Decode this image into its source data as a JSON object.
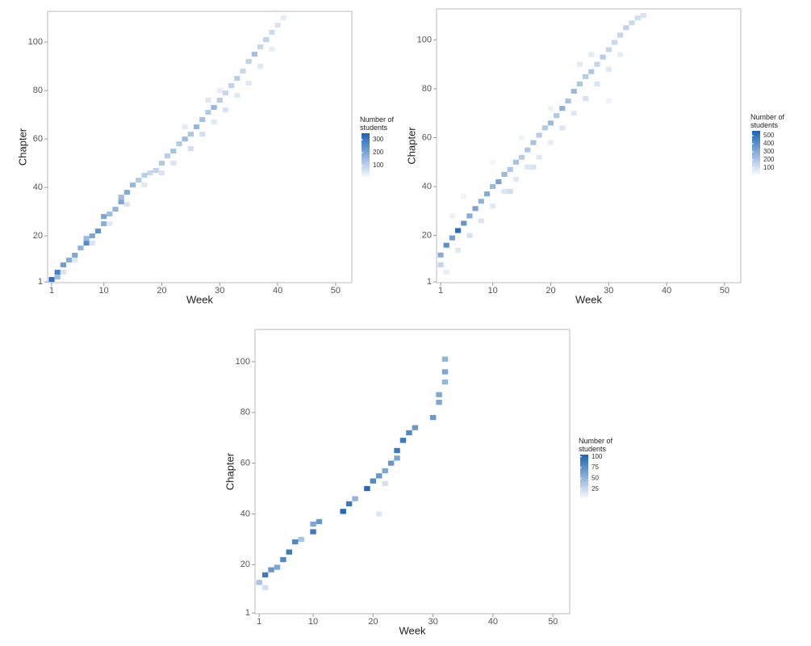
{
  "chart_data": [
    {
      "type": "heatmap",
      "x_label": "Week",
      "y_label": "Chapter",
      "legend_title": "Number of students",
      "color": "#1a63b5",
      "xlim": [
        0.3,
        52.8
      ],
      "xticks": [
        1,
        10,
        20,
        30,
        40,
        50
      ],
      "ylim": [
        0.7,
        112.7
      ],
      "yticks": [
        1,
        20,
        40,
        60,
        80,
        100
      ],
      "colorbar_lim": [
        0,
        350
      ],
      "colorbar_ticks": [
        100,
        200,
        300
      ],
      "x": [
        1,
        2,
        2,
        3,
        4,
        5,
        6,
        7,
        7,
        8,
        9,
        10,
        10,
        11,
        12,
        13,
        13,
        14,
        15,
        16,
        17,
        18,
        19,
        20,
        21,
        22,
        23,
        24,
        25,
        26,
        27,
        28,
        29,
        30,
        31,
        32,
        33,
        34,
        35,
        36,
        37,
        38,
        39,
        40,
        41,
        3,
        5,
        8,
        11,
        14,
        17,
        20,
        22,
        25,
        27,
        29,
        31,
        33,
        35,
        37,
        39,
        28,
        24,
        30
      ],
      "y": [
        2,
        5,
        3,
        8,
        10,
        12,
        15,
        17,
        19,
        20,
        22,
        25,
        28,
        29,
        31,
        34,
        36,
        38,
        41,
        43,
        45,
        46,
        47,
        50,
        53,
        55,
        58,
        60,
        62,
        65,
        68,
        71,
        73,
        76,
        79,
        82,
        85,
        88,
        92,
        95,
        98,
        101,
        104,
        107,
        110,
        5,
        10,
        17,
        25,
        33,
        41,
        46,
        50,
        56,
        62,
        67,
        72,
        78,
        83,
        90,
        97,
        76,
        65,
        80
      ],
      "values": [
        320,
        280,
        150,
        220,
        180,
        200,
        170,
        260,
        150,
        200,
        240,
        180,
        200,
        150,
        170,
        200,
        150,
        190,
        160,
        120,
        110,
        90,
        100,
        120,
        110,
        140,
        120,
        150,
        130,
        160,
        140,
        120,
        160,
        110,
        90,
        100,
        110,
        90,
        100,
        140,
        90,
        100,
        80,
        60,
        40,
        60,
        50,
        60,
        50,
        60,
        50,
        60,
        60,
        70,
        70,
        50,
        60,
        50,
        50,
        50,
        40,
        50,
        40,
        40
      ]
    },
    {
      "type": "heatmap",
      "x_label": "Week",
      "y_label": "Chapter",
      "legend_title": "Number of students",
      "color": "#1a63b5",
      "xlim": [
        0.3,
        52.8
      ],
      "xticks": [
        1,
        10,
        20,
        30,
        40,
        50
      ],
      "ylim": [
        0.7,
        112.7
      ],
      "yticks": [
        1,
        20,
        40,
        60,
        80,
        100
      ],
      "colorbar_lim": [
        0,
        560
      ],
      "colorbar_ticks": [
        100,
        200,
        300,
        400,
        500
      ],
      "x": [
        1,
        1,
        2,
        3,
        4,
        5,
        6,
        7,
        8,
        9,
        10,
        11,
        12,
        13,
        14,
        15,
        16,
        17,
        18,
        19,
        20,
        21,
        22,
        23,
        24,
        25,
        26,
        27,
        28,
        29,
        30,
        31,
        32,
        33,
        34,
        35,
        36,
        2,
        4,
        6,
        8,
        10,
        12,
        14,
        16,
        18,
        20,
        22,
        24,
        26,
        28,
        30,
        27,
        32,
        25,
        20,
        15,
        3,
        5,
        10,
        30,
        13,
        17
      ],
      "y": [
        12,
        8,
        16,
        19,
        22,
        25,
        28,
        31,
        34,
        37,
        40,
        42,
        45,
        47,
        50,
        52,
        55,
        58,
        61,
        64,
        66,
        69,
        72,
        75,
        79,
        82,
        85,
        87,
        90,
        93,
        96,
        99,
        102,
        105,
        107,
        109,
        110,
        5,
        14,
        20,
        26,
        32,
        38,
        43,
        48,
        52,
        58,
        64,
        70,
        76,
        82,
        88,
        94,
        94,
        90,
        72,
        60,
        28,
        36,
        50,
        75,
        38,
        48
      ],
      "values": [
        300,
        150,
        400,
        350,
        520,
        380,
        300,
        330,
        280,
        300,
        250,
        330,
        250,
        200,
        220,
        180,
        200,
        220,
        180,
        200,
        250,
        200,
        280,
        220,
        250,
        200,
        180,
        200,
        150,
        180,
        150,
        140,
        150,
        160,
        130,
        120,
        100,
        60,
        80,
        100,
        90,
        80,
        90,
        80,
        90,
        80,
        70,
        90,
        80,
        100,
        90,
        80,
        70,
        60,
        70,
        50,
        40,
        50,
        40,
        30,
        40,
        120,
        100
      ]
    },
    {
      "type": "heatmap",
      "x_label": "Week",
      "y_label": "Chapter",
      "legend_title": "Number of students",
      "color": "#1a63b5",
      "xlim": [
        0.3,
        52.8
      ],
      "xticks": [
        1,
        10,
        20,
        30,
        40,
        50
      ],
      "ylim": [
        0.7,
        112.7
      ],
      "yticks": [
        1,
        20,
        40,
        60,
        80,
        100
      ],
      "colorbar_lim": [
        0,
        105
      ],
      "colorbar_ticks": [
        25,
        50,
        75,
        100
      ],
      "x": [
        1,
        2,
        3,
        4,
        5,
        6,
        7,
        8,
        10,
        10,
        11,
        15,
        16,
        17,
        19,
        20,
        21,
        22,
        23,
        24,
        24,
        25,
        26,
        27,
        30,
        31,
        31,
        32,
        32,
        32,
        2,
        21,
        22
      ],
      "y": [
        13,
        16,
        18,
        19,
        22,
        25,
        29,
        30,
        33,
        36,
        37,
        41,
        44,
        46,
        50,
        53,
        55,
        57,
        60,
        62,
        65,
        69,
        72,
        74,
        78,
        84,
        87,
        92,
        96,
        101,
        11,
        40,
        52
      ],
      "values": [
        40,
        90,
        70,
        60,
        80,
        90,
        80,
        40,
        90,
        60,
        70,
        100,
        90,
        50,
        100,
        80,
        70,
        60,
        70,
        60,
        90,
        90,
        80,
        70,
        70,
        60,
        60,
        50,
        60,
        50,
        20,
        15,
        20
      ]
    }
  ]
}
